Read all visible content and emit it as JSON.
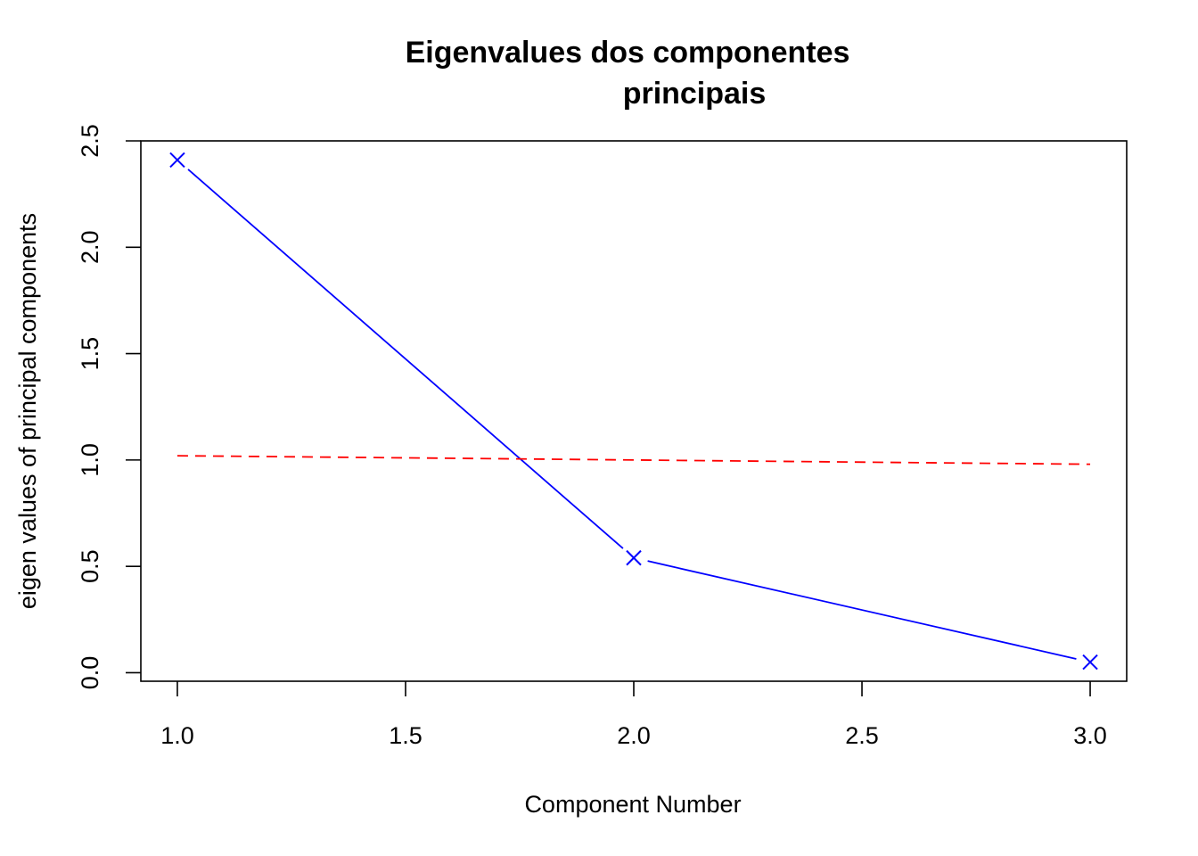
{
  "chart_data": {
    "type": "line",
    "title_line1": "Eigenvalues dos componentes",
    "title_line2": "principais",
    "xlabel": "Component Number",
    "ylabel": "eigen values of principal components",
    "xlim": [
      0.92,
      3.08
    ],
    "ylim": [
      -0.04,
      2.5
    ],
    "x_ticks": [
      "1.0",
      "1.5",
      "2.0",
      "2.5",
      "3.0"
    ],
    "y_ticks": [
      "0.0",
      "0.5",
      "1.0",
      "1.5",
      "2.0",
      "2.5"
    ],
    "grid": false,
    "legend": "none",
    "series": [
      {
        "style": "solid",
        "marker": "x",
        "color": "#0000ff",
        "x": [
          1,
          2,
          3
        ],
        "y": [
          2.41,
          0.54,
          0.05
        ]
      },
      {
        "style": "dashed",
        "marker": "none",
        "color": "#ff0000",
        "x": [
          1,
          2,
          3
        ],
        "y": [
          1.02,
          1.0,
          0.98
        ]
      }
    ]
  }
}
